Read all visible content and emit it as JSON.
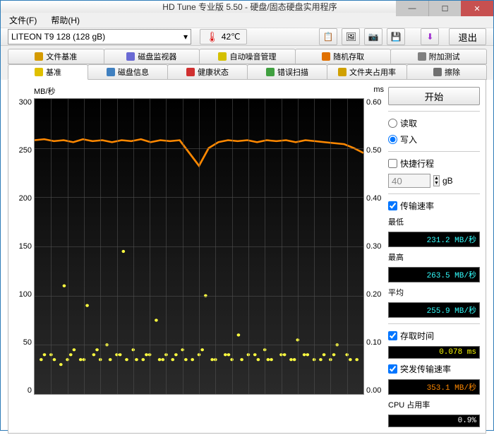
{
  "window": {
    "title": "HD Tune 专业版 5.50 - 硬盘/固态硬盘实用程序"
  },
  "menu": {
    "file": "文件(F)",
    "help": "帮助(H)"
  },
  "toolbar": {
    "drive": "LITEON T9  128 (128 gB)",
    "temp": "42℃",
    "exit": "退出"
  },
  "tabs_row1": [
    {
      "label": "文件基准",
      "icon_color": "#d49a00"
    },
    {
      "label": "磁盘监视器",
      "icon_color": "#6a6ad4"
    },
    {
      "label": "自动噪音管理",
      "icon_color": "#d4c000"
    },
    {
      "label": "随机存取",
      "icon_color": "#e07000"
    },
    {
      "label": "附加测试",
      "icon_color": "#808080"
    }
  ],
  "tabs_row2": [
    {
      "label": "基准",
      "active": true,
      "icon_color": "#e0c000"
    },
    {
      "label": "磁盘信息",
      "icon_color": "#4080c0"
    },
    {
      "label": "健康状态",
      "icon_color": "#d03030"
    },
    {
      "label": "错误扫描",
      "icon_color": "#40a040"
    },
    {
      "label": "文件夹占用率",
      "icon_color": "#d0a000"
    },
    {
      "label": "擦除",
      "icon_color": "#707070"
    }
  ],
  "chart": {
    "y_unit": "MB/秒",
    "y2_unit": "ms",
    "y_ticks": [
      "300",
      "250",
      "200",
      "150",
      "100",
      "50",
      "0"
    ],
    "y2_ticks": [
      "0.60",
      "0.50",
      "0.40",
      "0.30",
      "0.20",
      "0.10",
      "0.00"
    ],
    "transfer_color": "#ff8800",
    "access_color": "#ffff40",
    "grid_color": "#505050",
    "bg": "#000000",
    "transfer_series": [
      258,
      259,
      257,
      258,
      256,
      259,
      257,
      258,
      256,
      258,
      257,
      259,
      256,
      258,
      257,
      258,
      245,
      232,
      250,
      256,
      258,
      257,
      258,
      256,
      258,
      257,
      258,
      256,
      258,
      257,
      256,
      255,
      254,
      250,
      245
    ],
    "access_points": [
      [
        0.02,
        0.07
      ],
      [
        0.05,
        0.08
      ],
      [
        0.08,
        0.06
      ],
      [
        0.09,
        0.22
      ],
      [
        0.1,
        0.07
      ],
      [
        0.12,
        0.09
      ],
      [
        0.15,
        0.07
      ],
      [
        0.16,
        0.18
      ],
      [
        0.18,
        0.08
      ],
      [
        0.2,
        0.07
      ],
      [
        0.22,
        0.1
      ],
      [
        0.25,
        0.08
      ],
      [
        0.27,
        0.29
      ],
      [
        0.28,
        0.07
      ],
      [
        0.3,
        0.09
      ],
      [
        0.33,
        0.07
      ],
      [
        0.35,
        0.08
      ],
      [
        0.37,
        0.15
      ],
      [
        0.38,
        0.07
      ],
      [
        0.4,
        0.08
      ],
      [
        0.42,
        0.07
      ],
      [
        0.45,
        0.09
      ],
      [
        0.48,
        0.07
      ],
      [
        0.5,
        0.08
      ],
      [
        0.52,
        0.2
      ],
      [
        0.55,
        0.07
      ],
      [
        0.58,
        0.08
      ],
      [
        0.6,
        0.07
      ],
      [
        0.62,
        0.12
      ],
      [
        0.65,
        0.08
      ],
      [
        0.68,
        0.07
      ],
      [
        0.7,
        0.09
      ],
      [
        0.72,
        0.07
      ],
      [
        0.75,
        0.08
      ],
      [
        0.78,
        0.07
      ],
      [
        0.8,
        0.11
      ],
      [
        0.82,
        0.08
      ],
      [
        0.85,
        0.07
      ],
      [
        0.88,
        0.08
      ],
      [
        0.9,
        0.07
      ],
      [
        0.92,
        0.1
      ],
      [
        0.95,
        0.08
      ],
      [
        0.98,
        0.07
      ],
      [
        0.03,
        0.08
      ],
      [
        0.06,
        0.07
      ],
      [
        0.11,
        0.08
      ],
      [
        0.14,
        0.07
      ],
      [
        0.19,
        0.09
      ],
      [
        0.23,
        0.07
      ],
      [
        0.26,
        0.08
      ],
      [
        0.31,
        0.07
      ],
      [
        0.34,
        0.08
      ],
      [
        0.39,
        0.07
      ],
      [
        0.43,
        0.08
      ],
      [
        0.46,
        0.07
      ],
      [
        0.51,
        0.09
      ],
      [
        0.54,
        0.07
      ],
      [
        0.59,
        0.08
      ],
      [
        0.63,
        0.07
      ],
      [
        0.67,
        0.08
      ],
      [
        0.71,
        0.07
      ],
      [
        0.76,
        0.08
      ],
      [
        0.79,
        0.07
      ],
      [
        0.83,
        0.08
      ],
      [
        0.87,
        0.07
      ],
      [
        0.91,
        0.08
      ],
      [
        0.96,
        0.07
      ]
    ]
  },
  "side": {
    "start": "开始",
    "read": "读取",
    "write": "写入",
    "short_stroke": "快捷行程",
    "size_value": "40",
    "size_unit": "gB",
    "transfer_rate": "传输速率",
    "min_label": "最低",
    "min_value": "231.2 MB/秒",
    "max_label": "最高",
    "max_value": "263.5 MB/秒",
    "avg_label": "平均",
    "avg_value": "255.9 MB/秒",
    "access_time": "存取时间",
    "access_value": "0.078 ms",
    "burst_rate": "突发传输速率",
    "burst_value": "353.1 MB/秒",
    "cpu_label": "CPU 占用率",
    "cpu_value": "0.9%"
  }
}
